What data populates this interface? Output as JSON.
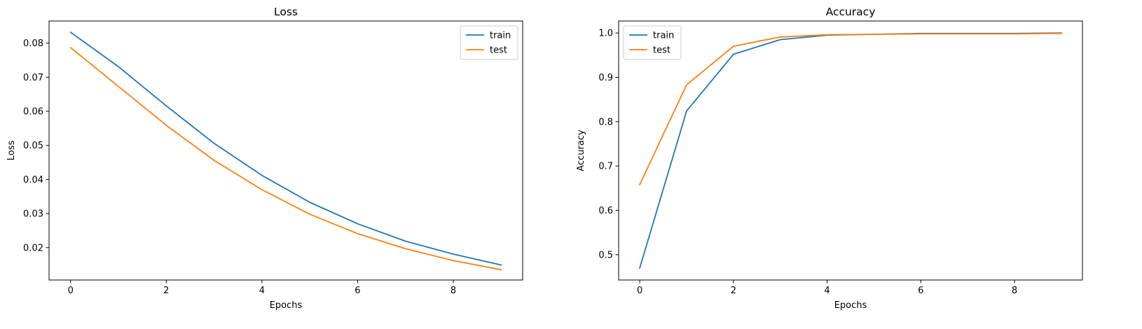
{
  "chart_data": [
    {
      "type": "line",
      "title": "Loss",
      "xlabel": "Epochs",
      "ylabel": "Loss",
      "x": [
        0,
        1,
        2,
        3,
        4,
        5,
        6,
        7,
        8,
        9
      ],
      "xlim": [
        -0.45,
        9.45
      ],
      "ylim": [
        0.0105,
        0.0865
      ],
      "xticks": [
        0,
        2,
        4,
        6,
        8
      ],
      "yticks": [
        0.02,
        0.03,
        0.04,
        0.05,
        0.06,
        0.07,
        0.08
      ],
      "ytick_labels": [
        "0.02",
        "0.03",
        "0.04",
        "0.05",
        "0.06",
        "0.07",
        "0.08"
      ],
      "grid": false,
      "legend_position": "top-right",
      "series": [
        {
          "name": "train",
          "color": "#1f77b4",
          "values": [
            0.0832,
            0.0731,
            0.0616,
            0.0506,
            0.0412,
            0.0333,
            0.027,
            0.0219,
            0.0181,
            0.0149
          ]
        },
        {
          "name": "test",
          "color": "#ff7f0e",
          "values": [
            0.0787,
            0.0673,
            0.0559,
            0.0456,
            0.037,
            0.0298,
            0.0241,
            0.0197,
            0.0162,
            0.0135
          ]
        }
      ]
    },
    {
      "type": "line",
      "title": "Accuracy",
      "xlabel": "Epochs",
      "ylabel": "Accuracy",
      "x": [
        0,
        1,
        2,
        3,
        4,
        5,
        6,
        7,
        8,
        9
      ],
      "xlim": [
        -0.45,
        9.45
      ],
      "ylim": [
        0.443,
        1.027
      ],
      "xticks": [
        0,
        2,
        4,
        6,
        8
      ],
      "yticks": [
        0.5,
        0.6,
        0.7,
        0.8,
        0.9,
        1.0
      ],
      "ytick_labels": [
        "0.5",
        "0.6",
        "0.7",
        "0.8",
        "0.9",
        "1.0"
      ],
      "grid": false,
      "legend_position": "top-left",
      "series": [
        {
          "name": "train",
          "color": "#1f77b4",
          "values": [
            0.47,
            0.824,
            0.952,
            0.985,
            0.995,
            0.997,
            0.999,
            0.999,
            0.999,
            1.0
          ]
        },
        {
          "name": "test",
          "color": "#ff7f0e",
          "values": [
            0.658,
            0.883,
            0.97,
            0.991,
            0.996,
            0.997,
            0.998,
            0.998,
            0.998,
            0.999
          ]
        }
      ]
    }
  ]
}
